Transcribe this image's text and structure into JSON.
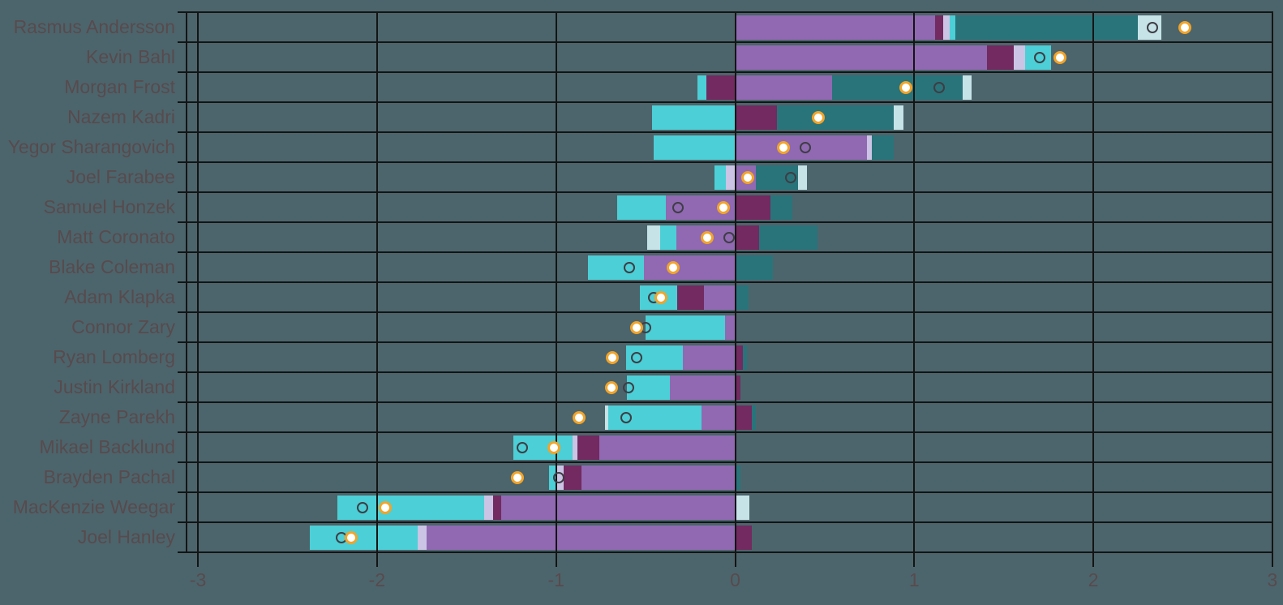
{
  "chart_data": {
    "type": "bar",
    "subtype": "diverging-stacked-horizontal",
    "title": "",
    "xlabel": "",
    "ylabel": "",
    "xlim": [
      -3,
      3
    ],
    "x_ticks": [
      -3,
      -2,
      -1,
      0,
      1,
      2,
      3
    ],
    "x_tick_labels": [
      "-3",
      "-2",
      "-1",
      "0",
      "1",
      "2",
      "3"
    ],
    "grid": "on",
    "legend": "none",
    "marker_legend": {
      "gray_open_circle": "marker-series-1",
      "orange_white_circle": "marker-series-2"
    },
    "colors": {
      "background": "#4c656c",
      "purple": "#9069b2",
      "magenta": "#722a60",
      "lavender": "#cbc4e4",
      "cyan": "#4ccfd6",
      "teal": "#29747a",
      "pale": "#c6e3e8",
      "line": "#141414",
      "text": "#584a4d",
      "marker_gray": "#3e3d44",
      "marker_orange": "#f1a42a",
      "marker_orange_fill": "#ffffff"
    },
    "players": [
      {
        "name": "Rasmus Andersson",
        "segments": [
          {
            "c": "purple",
            "from": 0,
            "to": 1.115
          },
          {
            "c": "magenta",
            "from": 1.115,
            "to": 1.16
          },
          {
            "c": "lavender",
            "from": 1.16,
            "to": 1.2
          },
          {
            "c": "cyan",
            "from": 1.2,
            "to": 1.23
          },
          {
            "c": "teal",
            "from": 1.23,
            "to": 2.25
          },
          {
            "c": "pale",
            "from": 2.25,
            "to": 2.38
          }
        ],
        "marker_gray": 2.33,
        "marker_orange": 2.51
      },
      {
        "name": "Kevin Bahl",
        "segments": [
          {
            "c": "purple",
            "from": 0,
            "to": 1.405
          },
          {
            "c": "magenta",
            "from": 1.405,
            "to": 1.555
          },
          {
            "c": "lavender",
            "from": 1.555,
            "to": 1.62
          },
          {
            "c": "cyan",
            "from": 1.62,
            "to": 1.765
          }
        ],
        "marker_gray": 1.7,
        "marker_orange": 1.815
      },
      {
        "name": "Morgan Frost",
        "segments": [
          {
            "c": "magenta",
            "from": -0.16,
            "to": 0
          },
          {
            "c": "cyan",
            "from": -0.21,
            "to": -0.16
          },
          {
            "c": "purple",
            "from": 0,
            "to": 0.54
          },
          {
            "c": "teal",
            "from": 0.54,
            "to": 1.27
          },
          {
            "c": "pale",
            "from": 1.27,
            "to": 1.32
          }
        ],
        "marker_gray": 1.14,
        "marker_orange": 0.955
      },
      {
        "name": "Nazem Kadri",
        "segments": [
          {
            "c": "cyan",
            "from": -0.465,
            "to": 0
          },
          {
            "c": "magenta",
            "from": 0,
            "to": 0.235
          },
          {
            "c": "teal",
            "from": 0.235,
            "to": 0.885
          },
          {
            "c": "pale",
            "from": 0.885,
            "to": 0.94
          }
        ],
        "marker_gray": 0.46,
        "marker_orange": 0.465
      },
      {
        "name": "Yegor Sharangovich",
        "segments": [
          {
            "c": "cyan",
            "from": -0.455,
            "to": 0
          },
          {
            "c": "purple",
            "from": 0,
            "to": 0.735
          },
          {
            "c": "lavender",
            "from": 0.735,
            "to": 0.765
          },
          {
            "c": "teal",
            "from": 0.765,
            "to": 0.885
          }
        ],
        "marker_gray": 0.39,
        "marker_orange": 0.27
      },
      {
        "name": "Joel Farabee",
        "segments": [
          {
            "c": "lavender",
            "from": -0.05,
            "to": 0
          },
          {
            "c": "cyan",
            "from": -0.115,
            "to": -0.05
          },
          {
            "c": "purple",
            "from": 0,
            "to": 0.115
          },
          {
            "c": "teal",
            "from": 0.115,
            "to": 0.35
          },
          {
            "c": "pale",
            "from": 0.35,
            "to": 0.4
          }
        ],
        "marker_gray": 0.31,
        "marker_orange": 0.07
      },
      {
        "name": "Samuel Honzek",
        "segments": [
          {
            "c": "purple",
            "from": -0.385,
            "to": 0
          },
          {
            "c": "cyan",
            "from": -0.66,
            "to": -0.385
          },
          {
            "c": "magenta",
            "from": 0,
            "to": 0.195
          },
          {
            "c": "teal",
            "from": 0.195,
            "to": 0.32
          }
        ],
        "marker_gray": -0.32,
        "marker_orange": -0.065
      },
      {
        "name": "Matt Coronato",
        "segments": [
          {
            "c": "purple",
            "from": -0.33,
            "to": 0
          },
          {
            "c": "cyan",
            "from": -0.42,
            "to": -0.33
          },
          {
            "c": "pale",
            "from": -0.49,
            "to": -0.42
          },
          {
            "c": "magenta",
            "from": 0,
            "to": 0.135
          },
          {
            "c": "teal",
            "from": 0.135,
            "to": 0.46
          }
        ],
        "marker_gray": -0.035,
        "marker_orange": -0.155
      },
      {
        "name": "Blake Coleman",
        "segments": [
          {
            "c": "purple",
            "from": -0.51,
            "to": 0
          },
          {
            "c": "cyan",
            "from": -0.82,
            "to": -0.51
          },
          {
            "c": "teal",
            "from": 0,
            "to": 0.21
          }
        ],
        "marker_gray": -0.59,
        "marker_orange": -0.345
      },
      {
        "name": "Adam Klapka",
        "segments": [
          {
            "c": "purple",
            "from": -0.175,
            "to": 0
          },
          {
            "c": "magenta",
            "from": -0.325,
            "to": -0.175
          },
          {
            "c": "cyan",
            "from": -0.53,
            "to": -0.325
          },
          {
            "c": "teal",
            "from": 0,
            "to": 0.075
          }
        ],
        "marker_gray": -0.455,
        "marker_orange": -0.415
      },
      {
        "name": "Connor Zary",
        "segments": [
          {
            "c": "purple",
            "from": -0.055,
            "to": 0
          },
          {
            "c": "cyan",
            "from": -0.5,
            "to": -0.055
          }
        ],
        "marker_gray": -0.5,
        "marker_orange": -0.55
      },
      {
        "name": "Ryan Lomberg",
        "segments": [
          {
            "c": "purple",
            "from": -0.29,
            "to": 0
          },
          {
            "c": "cyan",
            "from": -0.61,
            "to": -0.29
          },
          {
            "c": "magenta",
            "from": 0,
            "to": 0.045
          },
          {
            "c": "teal",
            "from": 0.045,
            "to": 0.065
          }
        ],
        "marker_gray": -0.55,
        "marker_orange": -0.685
      },
      {
        "name": "Justin Kirkland",
        "segments": [
          {
            "c": "purple",
            "from": -0.365,
            "to": 0
          },
          {
            "c": "cyan",
            "from": -0.605,
            "to": -0.365
          },
          {
            "c": "magenta",
            "from": 0,
            "to": 0.03
          }
        ],
        "marker_gray": -0.595,
        "marker_orange": -0.69
      },
      {
        "name": "Zayne Parekh",
        "segments": [
          {
            "c": "purple",
            "from": -0.19,
            "to": 0
          },
          {
            "c": "cyan",
            "from": -0.71,
            "to": -0.19
          },
          {
            "c": "pale",
            "from": -0.725,
            "to": -0.71
          },
          {
            "c": "magenta",
            "from": 0,
            "to": 0.095
          },
          {
            "c": "teal",
            "from": 0.095,
            "to": 0.115
          }
        ],
        "marker_gray": -0.61,
        "marker_orange": -0.87
      },
      {
        "name": "Mikael Backlund",
        "segments": [
          {
            "c": "purple",
            "from": -0.76,
            "to": 0
          },
          {
            "c": "magenta",
            "from": -0.88,
            "to": -0.76
          },
          {
            "c": "lavender",
            "from": -0.91,
            "to": -0.88
          },
          {
            "c": "cyan",
            "from": -1.24,
            "to": -0.91
          }
        ],
        "marker_gray": -1.19,
        "marker_orange": -1.01
      },
      {
        "name": "Brayden Pachal",
        "segments": [
          {
            "c": "purple",
            "from": -0.86,
            "to": 0
          },
          {
            "c": "magenta",
            "from": -0.96,
            "to": -0.86
          },
          {
            "c": "lavender",
            "from": -1.0,
            "to": -0.96
          },
          {
            "c": "cyan",
            "from": -1.04,
            "to": -1.0
          },
          {
            "c": "teal",
            "from": 0,
            "to": 0.03
          }
        ],
        "marker_gray": -0.985,
        "marker_orange": -1.215
      },
      {
        "name": "MacKenzie Weegar",
        "segments": [
          {
            "c": "purple",
            "from": -1.305,
            "to": 0
          },
          {
            "c": "magenta",
            "from": -1.35,
            "to": -1.305
          },
          {
            "c": "lavender",
            "from": -1.4,
            "to": -1.35
          },
          {
            "c": "cyan",
            "from": -2.22,
            "to": -1.4
          },
          {
            "c": "pale",
            "from": 0,
            "to": 0.08
          }
        ],
        "marker_gray": -2.08,
        "marker_orange": -1.955
      },
      {
        "name": "Joel Hanley",
        "segments": [
          {
            "c": "purple",
            "from": -1.725,
            "to": 0
          },
          {
            "c": "lavender",
            "from": -1.775,
            "to": -1.725
          },
          {
            "c": "cyan",
            "from": -2.375,
            "to": -1.775
          },
          {
            "c": "magenta",
            "from": 0,
            "to": 0.095
          }
        ],
        "marker_gray": -2.2,
        "marker_orange": -2.145
      }
    ]
  }
}
